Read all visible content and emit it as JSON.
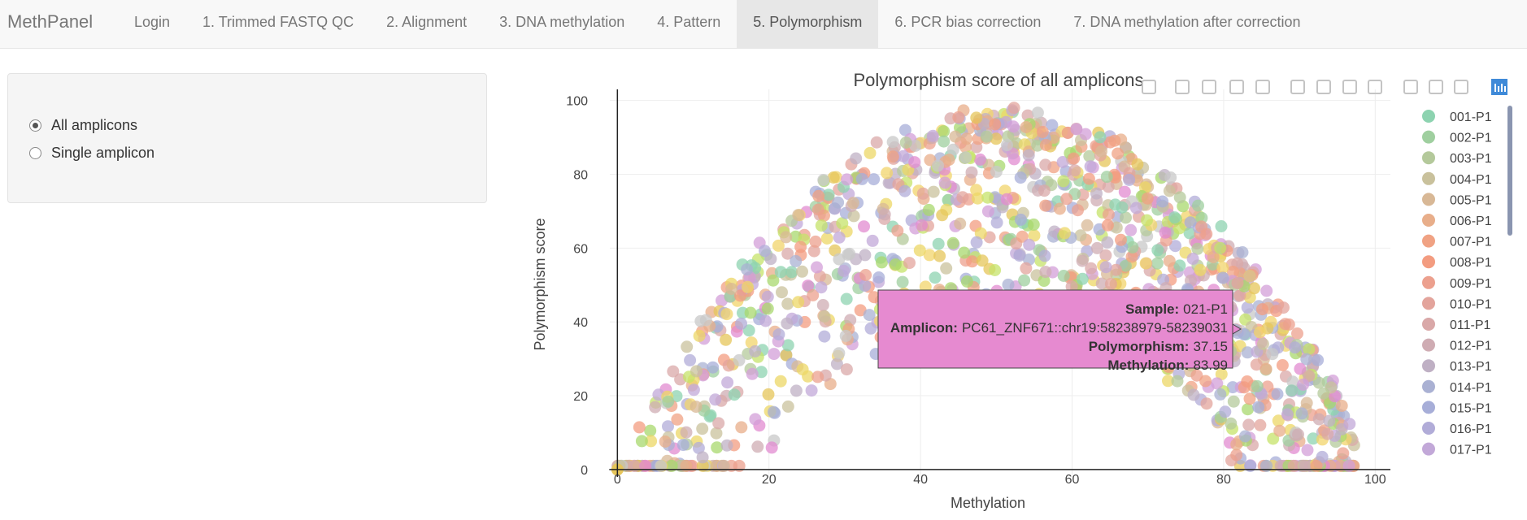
{
  "app": {
    "brand": "MethPanel"
  },
  "nav": {
    "tabs": [
      {
        "label": "Login"
      },
      {
        "label": "1. Trimmed FASTQ QC"
      },
      {
        "label": "2. Alignment"
      },
      {
        "label": "3. DNA methylation"
      },
      {
        "label": "4. Pattern"
      },
      {
        "label": "5. Polymorphism",
        "active": true
      },
      {
        "label": "6. PCR bias correction"
      },
      {
        "label": "7. DNA methylation after correction"
      }
    ]
  },
  "sidebar": {
    "options": [
      {
        "label": "All amplicons",
        "selected": true
      },
      {
        "label": "Single amplicon",
        "selected": false
      }
    ]
  },
  "toolbar": {
    "icons": [
      "camera-icon",
      "zoom-icon",
      "pan-icon",
      "box-select-icon",
      "lasso-select-icon",
      "zoom-in-icon",
      "zoom-out-icon",
      "autoscale-icon",
      "reset-axes-icon",
      "spike-lines-icon",
      "hover-closest-icon",
      "hover-compare-icon",
      "plotly-logo-icon"
    ]
  },
  "chart_data": {
    "type": "scatter",
    "title": "Polymorphism score of all amplicons",
    "xlabel": "Methylation",
    "ylabel": "Polymorphism score",
    "xlim": [
      -1,
      102
    ],
    "ylim": [
      -2,
      103
    ],
    "xticks": [
      0,
      20,
      40,
      60,
      80,
      100
    ],
    "yticks": [
      0,
      20,
      40,
      60,
      80,
      100
    ],
    "grid": true,
    "legend_position": "right",
    "series": [
      {
        "name": "001-P1",
        "color": "#8dd3b0"
      },
      {
        "name": "002-P1",
        "color": "#9fcf9f"
      },
      {
        "name": "003-P1",
        "color": "#b4c99b"
      },
      {
        "name": "004-P1",
        "color": "#c9c19c"
      },
      {
        "name": "005-P1",
        "color": "#d8b896"
      },
      {
        "name": "006-P1",
        "color": "#e8ae8a"
      },
      {
        "name": "007-P1",
        "color": "#f0a283"
      },
      {
        "name": "008-P1",
        "color": "#f39c80"
      },
      {
        "name": "009-P1",
        "color": "#eca08e"
      },
      {
        "name": "010-P1",
        "color": "#e3a49c"
      },
      {
        "name": "011-P1",
        "color": "#d9a8a8"
      },
      {
        "name": "012-P1",
        "color": "#cfacb3"
      },
      {
        "name": "013-P1",
        "color": "#bfb0c4"
      },
      {
        "name": "014-P1",
        "color": "#aab1d3"
      },
      {
        "name": "015-P1",
        "color": "#a7aed8"
      },
      {
        "name": "016-P1",
        "color": "#b1acd8"
      },
      {
        "name": "017-P1",
        "color": "#c2a8d8"
      }
    ],
    "extra_colors": [
      "#d39fd8",
      "#e28bd0",
      "#c8c8c8",
      "#c5e36a",
      "#ecd766",
      "#f2d46b",
      "#e6c55a",
      "#a8d86e"
    ],
    "hover": {
      "sample_label": "Sample:",
      "sample": "021-P1",
      "amplicon_label": "Amplicon:",
      "amplicon": "PC61_ZNF671::chr19:58238979-58239031",
      "polymorphism_label": "Polymorphism:",
      "polymorphism": "37.15",
      "methylation_label": "Methylation:",
      "methylation": "83.99",
      "bg_color": "#e68ad0"
    }
  }
}
